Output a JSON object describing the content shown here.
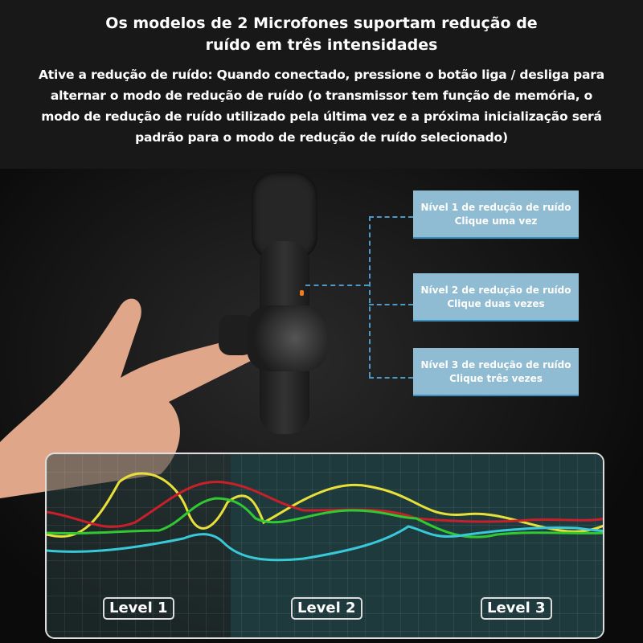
{
  "header": {
    "title_line1": "Os modelos de 2 Microfones suportam redução de",
    "title_line2": "ruído em três intensidades",
    "description": [
      "Ative a redução de ruído: Quando conectado, pressione o botão liga / desliga para",
      "alternar o modo de redução de ruído (o transmissor tem função de memória, o",
      "modo de redução de ruído utilizado pela última vez e a próxima inicialização será",
      "padrão para o modo de redução de ruído selecionado)"
    ]
  },
  "levels_info": [
    {
      "line1": "Nível 1 de redução de ruído",
      "line2": "Clique uma vez"
    },
    {
      "line1": "Nível 2 de redução de ruído",
      "line2": "Clique duas vezes"
    },
    {
      "line1": "Nível 3 de redução de ruído",
      "line2": "Clique três vezes"
    }
  ],
  "waveform": {
    "labels": [
      "Level 1",
      "Level 2",
      "Level 3"
    ],
    "colors": {
      "yellow": "#e8e03a",
      "red": "#c8202a",
      "green": "#32c832",
      "cyan": "#38c8d8"
    }
  },
  "colors": {
    "box": "#8fbcd2",
    "connector": "#4b9ac7",
    "led": "#f07c1a"
  }
}
